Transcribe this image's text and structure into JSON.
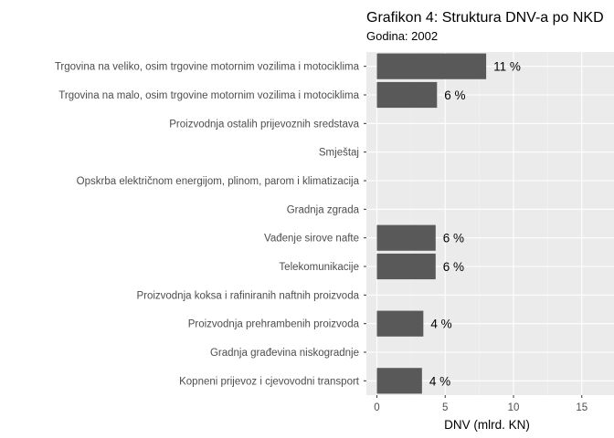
{
  "chart_data": {
    "type": "bar",
    "orientation": "horizontal",
    "title": "Grafikon 4: Struktura DNV-a po NKD",
    "subtitle": "Godina: 2002",
    "xlabel": "DNV (mlrd. KN)",
    "ylabel": "",
    "xlim": [
      0,
      16.5
    ],
    "x_ticks": [
      0,
      5,
      10,
      15
    ],
    "grid": true,
    "panel_background": "#ebebeb",
    "bar_color": "#595959",
    "categories": [
      "Trgovina na veliko, osim trgovine motornim vozilima i motociklima",
      "Trgovina na malo, osim trgovine motornim vozilima i motociklima",
      "Proizvodnja ostalih prijevoznih sredstava",
      "Smještaj",
      "Opskrba električnom energijom, plinom, parom i klimatizacija",
      "Gradnja zgrada",
      "Vađenje sirove nafte",
      "Telekomunikacije",
      "Proizvodnja koksa i rafiniranih naftnih proizvoda",
      "Proizvodnja prehrambenih proizvoda",
      "Gradnja građevina niskogradnje",
      "Kopneni prijevoz i cjevovodni transport"
    ],
    "values": [
      8.0,
      4.4,
      0,
      0,
      0,
      0,
      4.3,
      4.3,
      0,
      3.4,
      0,
      3.3
    ],
    "data_labels": [
      "11 %",
      "6 %",
      "",
      "",
      "",
      "",
      "6 %",
      "6 %",
      "",
      "4 %",
      "",
      "4 %"
    ]
  }
}
